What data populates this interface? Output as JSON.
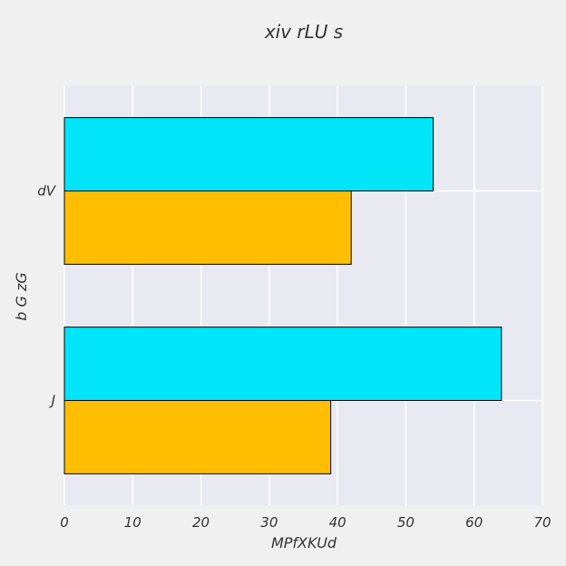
{
  "chart_data": {
    "type": "bar",
    "orientation": "horizontal",
    "title": "xiv rLU s",
    "xlabel": "MPfXKUd",
    "ylabel": "b G zG",
    "categories": [
      "J",
      "dV"
    ],
    "series": [
      {
        "color": "#00e5f7",
        "values": [
          64,
          54
        ]
      },
      {
        "color": "#ffbf00",
        "values": [
          39,
          42
        ]
      }
    ],
    "xlim": [
      0,
      70
    ],
    "xticks": [
      0,
      10,
      20,
      30,
      40,
      50,
      60,
      70
    ],
    "grid": true,
    "plot_background": "#e9e9f2"
  }
}
